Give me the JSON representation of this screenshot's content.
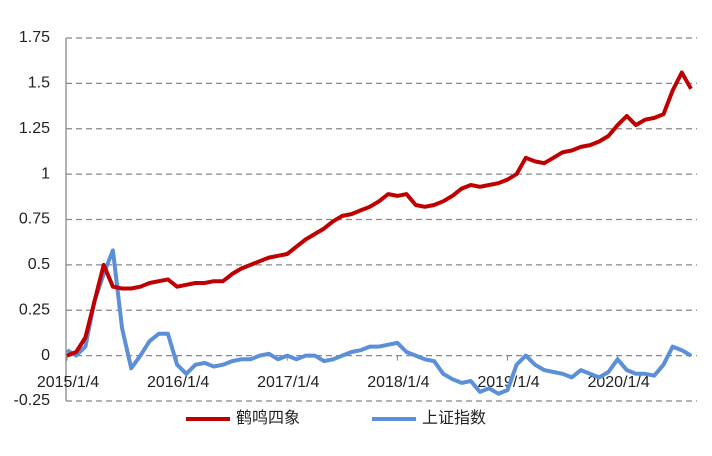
{
  "chart_data": {
    "type": "line",
    "x": [
      "2015/1/4",
      null,
      null,
      null,
      null,
      null,
      null,
      null,
      null,
      null,
      null,
      null,
      "2016/1/4",
      null,
      null,
      null,
      null,
      null,
      null,
      null,
      null,
      null,
      null,
      null,
      "2017/1/4",
      null,
      null,
      null,
      null,
      null,
      null,
      null,
      null,
      null,
      null,
      null,
      "2018/1/4",
      null,
      null,
      null,
      null,
      null,
      null,
      null,
      null,
      null,
      null,
      null,
      "2019/1/4",
      null,
      null,
      null,
      null,
      null,
      null,
      null,
      null,
      null,
      null,
      null,
      "2020/1/4",
      null,
      null,
      null,
      null,
      null,
      null,
      null,
      null
    ],
    "series": [
      {
        "name": "鹤鸣四象",
        "color": "#c00000",
        "values": [
          0,
          0.02,
          0.1,
          0.3,
          0.5,
          0.38,
          0.37,
          0.37,
          0.38,
          0.4,
          0.41,
          0.42,
          0.38,
          0.39,
          0.4,
          0.4,
          0.41,
          0.41,
          0.45,
          0.48,
          0.5,
          0.52,
          0.54,
          0.55,
          0.56,
          0.6,
          0.64,
          0.67,
          0.7,
          0.74,
          0.77,
          0.78,
          0.8,
          0.82,
          0.85,
          0.89,
          0.88,
          0.89,
          0.83,
          0.82,
          0.83,
          0.85,
          0.88,
          0.92,
          0.94,
          0.93,
          0.94,
          0.95,
          0.97,
          1.0,
          1.09,
          1.07,
          1.06,
          1.09,
          1.12,
          1.13,
          1.15,
          1.16,
          1.18,
          1.21,
          1.27,
          1.32,
          1.27,
          1.3,
          1.31,
          1.33,
          1.46,
          1.56,
          1.47
        ]
      },
      {
        "name": "上证指数",
        "color": "#5b8fd9",
        "values": [
          0.03,
          0,
          0.05,
          0.3,
          0.45,
          0.58,
          0.15,
          -0.07,
          0,
          0.08,
          0.12,
          0.12,
          -0.05,
          -0.1,
          -0.05,
          -0.04,
          -0.06,
          -0.05,
          -0.03,
          -0.02,
          -0.02,
          0,
          0.01,
          -0.02,
          0,
          -0.02,
          0,
          0,
          -0.03,
          -0.02,
          0,
          0.02,
          0.03,
          0.05,
          0.05,
          0.06,
          0.07,
          0.02,
          0,
          -0.02,
          -0.03,
          -0.1,
          -0.13,
          -0.15,
          -0.14,
          -0.2,
          -0.18,
          -0.21,
          -0.19,
          -0.05,
          0,
          -0.05,
          -0.08,
          -0.09,
          -0.1,
          -0.12,
          -0.08,
          -0.1,
          -0.12,
          -0.09,
          -0.02,
          -0.08,
          -0.1,
          -0.1,
          -0.11,
          -0.05,
          0.05,
          0.03,
          0
        ]
      }
    ],
    "ylim": [
      -0.25,
      1.75
    ],
    "yticks": [
      -0.25,
      0,
      0.25,
      0.5,
      0.75,
      1,
      1.25,
      1.5,
      1.75
    ],
    "grid": true,
    "legend": "bottom"
  }
}
